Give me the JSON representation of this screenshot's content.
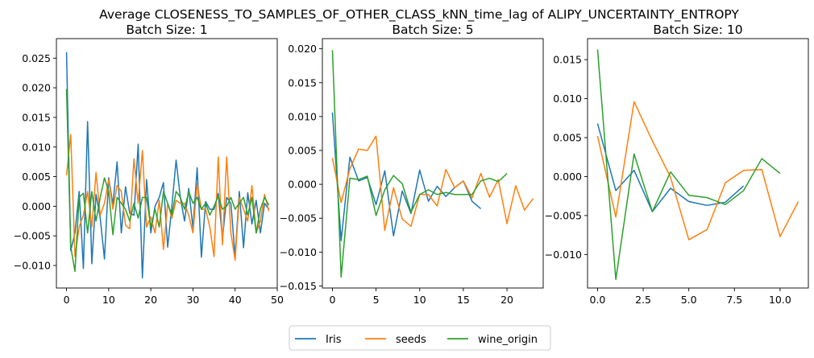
{
  "figure": {
    "suptitle": "Average CLOSENESS_TO_SAMPLES_OF_OTHER_CLASS_kNN_time_lag of ALIPY_UNCERTAINTY_ENTROPY"
  },
  "legend": {
    "entries": [
      "Iris",
      "seeds",
      "wine_origin"
    ],
    "placement": "bottom-center"
  },
  "colors": {
    "Iris": "#1f77b4",
    "seeds": "#ff7f0e",
    "wine_origin": "#2ca02c"
  },
  "chart_data": [
    {
      "type": "line",
      "title": "Batch Size: 1",
      "xlim": [
        -2.4,
        50
      ],
      "ylim": [
        -0.0138,
        0.0283
      ],
      "xticks": [
        0,
        10,
        20,
        30,
        40,
        50
      ],
      "xtick_labels": [
        "0",
        "10",
        "20",
        "30",
        "40",
        "50"
      ],
      "yticks": [
        -0.01,
        -0.005,
        0.0,
        0.005,
        0.01,
        0.015,
        0.02,
        0.025
      ],
      "ytick_labels": [
        "−0.010",
        "−0.005",
        "0.000",
        "0.005",
        "0.010",
        "0.015",
        "0.020",
        "0.025"
      ],
      "series": [
        {
          "name": "Iris",
          "x": [
            0,
            1,
            2,
            3,
            4,
            5,
            6,
            7,
            8,
            9,
            10,
            11,
            12,
            13,
            14,
            15,
            16,
            17,
            18,
            19,
            20,
            21,
            22,
            23,
            24,
            25,
            26,
            27,
            28,
            29,
            30,
            31,
            32,
            33,
            34,
            35,
            36,
            37,
            38,
            39,
            40,
            41,
            42,
            43,
            44,
            45,
            46,
            47,
            48
          ],
          "y": [
            0.026,
            -0.0075,
            -0.0045,
            0.0025,
            -0.0105,
            0.0143,
            -0.0097,
            0.002,
            -0.002,
            -0.0089,
            0.0048,
            0.0003,
            0.0075,
            -0.0045,
            0.0033,
            -0.0012,
            -0.0015,
            0.0105,
            -0.0121,
            0.0045,
            -0.0045,
            0.0,
            0.0015,
            0.004,
            -0.0069,
            0.0,
            0.0078,
            0.0015,
            -0.0025,
            0.003,
            -0.0037,
            0.0065,
            -0.0086,
            0.0008,
            -0.0005,
            -0.0005,
            0.0022,
            -0.0055,
            0.0015,
            0.0005,
            -0.0085,
            0.0025,
            -0.007,
            0.0023,
            -0.003,
            0.001,
            -0.0045,
            0.0005,
            -0.0005
          ]
        },
        {
          "name": "seeds",
          "x": [
            0,
            1,
            2,
            3,
            4,
            5,
            6,
            7,
            8,
            9,
            10,
            11,
            12,
            13,
            14,
            15,
            16,
            17,
            18,
            19,
            20,
            21,
            22,
            23,
            24,
            25,
            26,
            27,
            28,
            29,
            30,
            31,
            32,
            33,
            34,
            35,
            36,
            37,
            38,
            39,
            40,
            41,
            42,
            43,
            44,
            45,
            46,
            47,
            48
          ],
          "y": [
            0.0052,
            0.0121,
            -0.0085,
            -0.0035,
            -0.0015,
            0.0025,
            -0.0035,
            0.0057,
            -0.0015,
            0.0005,
            0.0045,
            -0.0005,
            0.0035,
            0.0025,
            -0.0032,
            -0.0038,
            0.008,
            0.0005,
            0.0094,
            -0.0035,
            -0.0018,
            -0.0045,
            0.001,
            -0.0073,
            0.0005,
            -0.002,
            0.001,
            0.0005,
            0.0005,
            -0.0015,
            -0.0045,
            0.0038,
            -0.0005,
            -0.0005,
            -0.0035,
            -0.0085,
            0.0083,
            -0.0065,
            0.0083,
            -0.0045,
            -0.0091,
            0.0015,
            -0.0005,
            -0.0025,
            0.0035,
            -0.0045,
            -0.0025,
            0.002,
            -0.0008
          ]
        },
        {
          "name": "wine_origin",
          "x": [
            0,
            1,
            2,
            3,
            4,
            5,
            6,
            7,
            8,
            9,
            10,
            11,
            12,
            13,
            14,
            15,
            16,
            17,
            18,
            19,
            20,
            21,
            22,
            23,
            24,
            25,
            26,
            27,
            28,
            29,
            30,
            31,
            32,
            33,
            34,
            35,
            36,
            37,
            38,
            39,
            40,
            41,
            42,
            43,
            44,
            45,
            46,
            47,
            48
          ],
          "y": [
            0.0198,
            -0.0068,
            -0.011,
            0.0015,
            0.0022,
            -0.0045,
            0.0025,
            -0.0025,
            0.0015,
            0.0048,
            0.0025,
            -0.0048,
            0.0015,
            0.0005,
            -0.0005,
            -0.0025,
            0.0005,
            -0.002,
            0.0015,
            0.0015,
            -0.0035,
            -0.0005,
            -0.0035,
            0.0025,
            0.0005,
            -0.0015,
            0.0025,
            0.0015,
            -0.0005,
            0.0025,
            0.0005,
            0.0015,
            -0.0005,
            0.0005,
            -0.0015,
            0.0,
            0.0017,
            -0.0005,
            0.0,
            0.0015,
            -0.0005,
            0.0005,
            0.0015,
            -0.0015,
            0.0015,
            -0.0045,
            -0.0005,
            0.0015,
            0.0002
          ]
        }
      ]
    },
    {
      "type": "line",
      "title": "Batch Size: 5",
      "xlim": [
        -1.15,
        24.15
      ],
      "ylim": [
        -0.0153,
        0.0215
      ],
      "xticks": [
        0,
        5,
        10,
        15,
        20
      ],
      "xtick_labels": [
        "0",
        "5",
        "10",
        "15",
        "20"
      ],
      "yticks": [
        -0.015,
        -0.01,
        -0.005,
        0.0,
        0.005,
        0.01,
        0.015,
        0.02
      ],
      "ytick_labels": [
        "−0.015",
        "−0.010",
        "−0.005",
        "0.000",
        "0.005",
        "0.010",
        "0.015",
        "0.020"
      ],
      "series": [
        {
          "name": "Iris",
          "x": [
            0,
            1,
            2,
            3,
            4,
            5,
            6,
            7,
            8,
            9,
            10,
            11,
            12,
            13,
            14,
            15,
            16,
            17
          ],
          "y": [
            0.0106,
            -0.0083,
            0.004,
            0.0005,
            0.001,
            -0.003,
            0.002,
            -0.0076,
            -0.001,
            -0.0043,
            0.0021,
            -0.0025,
            -0.0003,
            -0.0018,
            -0.0005,
            0.0005,
            -0.0025,
            -0.0036
          ]
        },
        {
          "name": "seeds",
          "x": [
            0,
            1,
            2,
            3,
            4,
            5,
            6,
            7,
            8,
            9,
            10,
            11,
            12,
            13,
            14,
            15,
            16,
            17,
            18,
            19,
            20,
            21,
            22,
            23
          ],
          "y": [
            0.0039,
            -0.0027,
            0.0023,
            0.0052,
            0.005,
            0.0071,
            -0.0068,
            -0.0005,
            -0.0051,
            -0.0062,
            -0.0015,
            -0.0015,
            -0.0032,
            0.0022,
            -0.0005,
            0.0005,
            -0.002,
            0.0016,
            -0.0019,
            0.0007,
            -0.0058,
            -0.0002,
            -0.0038,
            -0.0021
          ]
        },
        {
          "name": "wine_origin",
          "x": [
            0,
            1,
            2,
            3,
            4,
            5,
            6,
            7,
            8,
            9,
            10,
            11,
            12,
            13,
            14,
            15,
            16,
            17,
            18,
            19,
            20
          ],
          "y": [
            0.0198,
            -0.0137,
            0.0009,
            0.0007,
            0.0012,
            -0.0046,
            -0.0008,
            0.0013,
            0.0001,
            -0.0041,
            -0.0015,
            -0.0008,
            -0.0015,
            -0.0012,
            -0.0015,
            -0.0015,
            -0.0015,
            0.0005,
            0.0009,
            0.0004,
            0.0016
          ]
        }
      ]
    },
    {
      "type": "line",
      "title": "Batch Size: 10",
      "xlim": [
        -0.55,
        11.55
      ],
      "ylim": [
        -0.0143,
        0.0177
      ],
      "xticks": [
        0,
        2.5,
        5,
        7.5,
        10
      ],
      "xtick_labels": [
        "0.0",
        "2.5",
        "5.0",
        "7.5",
        "10.0"
      ],
      "yticks": [
        -0.01,
        -0.005,
        0.0,
        0.005,
        0.01,
        0.015
      ],
      "ytick_labels": [
        "−0.010",
        "−0.005",
        "0.000",
        "0.005",
        "0.010",
        "0.015"
      ],
      "series": [
        {
          "name": "Iris",
          "x": [
            0,
            1,
            2,
            3,
            4,
            5,
            6,
            7,
            8
          ],
          "y": [
            0.0068,
            -0.0018,
            0.0008,
            -0.0045,
            -0.0015,
            -0.0032,
            -0.0037,
            -0.0033,
            -0.0012
          ]
        },
        {
          "name": "seeds",
          "x": [
            0,
            1,
            2,
            3,
            4,
            5,
            6,
            7,
            8,
            9,
            10,
            11
          ],
          "y": [
            0.0052,
            -0.0052,
            0.0096,
            0.0046,
            -0.0001,
            -0.0081,
            -0.0068,
            -0.0008,
            0.0008,
            0.0009,
            -0.0077,
            -0.0032
          ]
        },
        {
          "name": "wine_origin",
          "x": [
            0,
            1,
            2,
            3,
            4,
            5,
            6,
            7,
            8,
            9,
            10
          ],
          "y": [
            0.0163,
            -0.0132,
            0.0029,
            -0.0045,
            0.0006,
            -0.0024,
            -0.0027,
            -0.0036,
            -0.0018,
            0.0023,
            0.0004
          ]
        }
      ]
    }
  ]
}
